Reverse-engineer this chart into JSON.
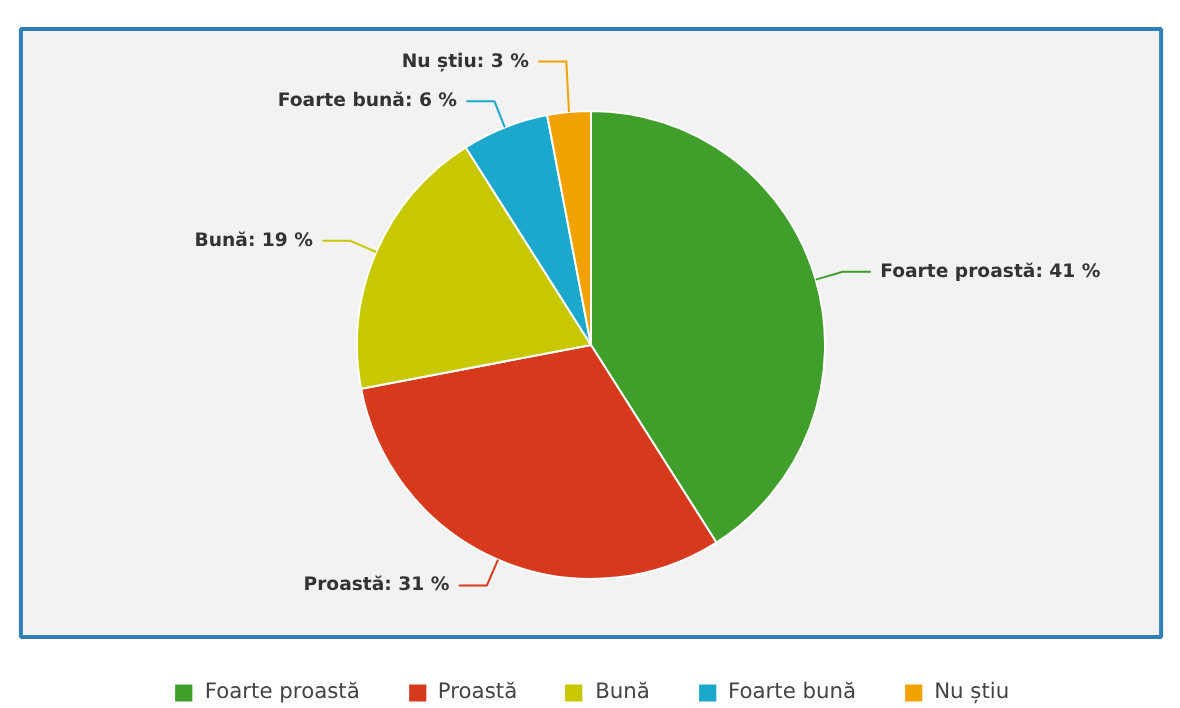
{
  "chart_data": {
    "type": "pie",
    "categories": [
      "Foarte proastă",
      "Proastă",
      "Bună",
      "Foarte bună",
      "Nu știu"
    ],
    "values": [
      41,
      31,
      19,
      6,
      3
    ],
    "colors": [
      "#3f9f2a",
      "#d6391b",
      "#c8c800",
      "#1ca8cc",
      "#f2a200"
    ],
    "value_labels": [
      "Foarte proastă: 41 %",
      "Proastă: 31 %",
      "Bună: 19 %",
      "Foarte bună: 6 %",
      "Nu știu: 3 %"
    ],
    "legend": "bottom"
  }
}
